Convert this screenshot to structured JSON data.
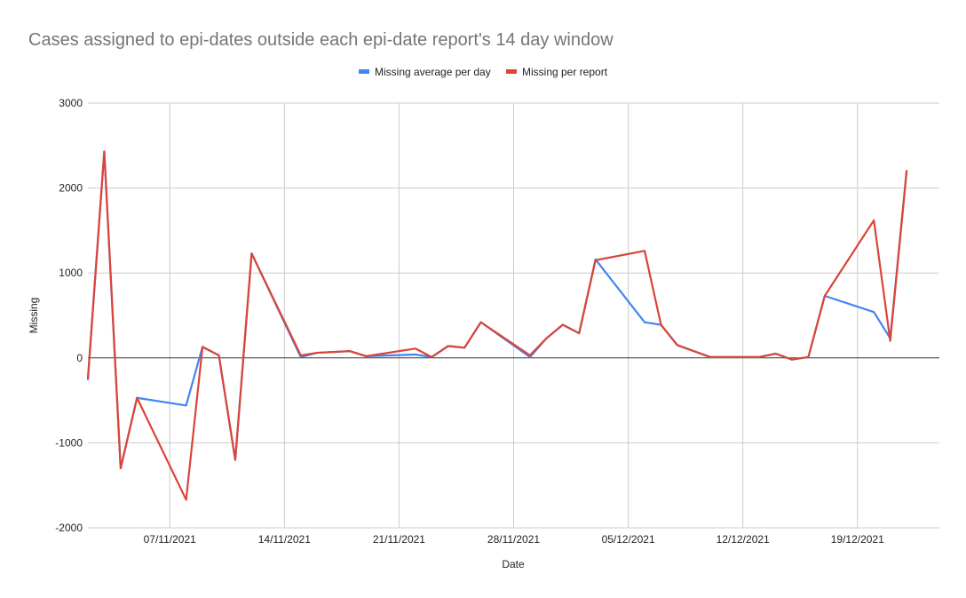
{
  "chart_data": {
    "type": "line",
    "title": "Cases assigned to epi-dates outside each epi-date report's 14 day window",
    "xlabel": "Date",
    "ylabel": "Missing",
    "ylim": [
      -2000,
      3000
    ],
    "yticks": [
      "3000",
      "2000",
      "1000",
      "0",
      "-1000",
      "-2000"
    ],
    "xlim": [
      "2021-11-02",
      "2021-12-24"
    ],
    "xticks": [
      {
        "date": "2021-11-07",
        "label": "07/11/2021"
      },
      {
        "date": "2021-11-14",
        "label": "14/11/2021"
      },
      {
        "date": "2021-11-21",
        "label": "21/11/2021"
      },
      {
        "date": "2021-11-28",
        "label": "28/11/2021"
      },
      {
        "date": "2021-12-05",
        "label": "05/12/2021"
      },
      {
        "date": "2021-12-12",
        "label": "12/12/2021"
      },
      {
        "date": "2021-12-19",
        "label": "19/12/2021"
      }
    ],
    "grid": true,
    "legend": "top",
    "series": [
      {
        "name": "Missing average per day",
        "color": "#4285f4",
        "points": [
          [
            "2021-11-02",
            -250
          ],
          [
            "2021-11-03",
            2430
          ],
          [
            "2021-11-04",
            -1300
          ],
          [
            "2021-11-05",
            -470
          ],
          [
            "2021-11-08",
            -560
          ],
          [
            "2021-11-09",
            130
          ],
          [
            "2021-11-10",
            30
          ],
          [
            "2021-11-11",
            -1200
          ],
          [
            "2021-11-12",
            1230
          ],
          [
            "2021-11-15",
            10
          ],
          [
            "2021-11-16",
            60
          ],
          [
            "2021-11-17",
            70
          ],
          [
            "2021-11-18",
            80
          ],
          [
            "2021-11-19",
            20
          ],
          [
            "2021-11-22",
            40
          ],
          [
            "2021-11-23",
            10
          ],
          [
            "2021-11-24",
            140
          ],
          [
            "2021-11-25",
            120
          ],
          [
            "2021-11-26",
            420
          ],
          [
            "2021-11-29",
            10
          ],
          [
            "2021-11-30",
            230
          ],
          [
            "2021-12-01",
            390
          ],
          [
            "2021-12-02",
            290
          ],
          [
            "2021-12-03",
            1160
          ],
          [
            "2021-12-06",
            420
          ],
          [
            "2021-12-07",
            390
          ],
          [
            "2021-12-08",
            150
          ],
          [
            "2021-12-09",
            80
          ],
          [
            "2021-12-10",
            10
          ],
          [
            "2021-12-13",
            10
          ],
          [
            "2021-12-14",
            50
          ],
          [
            "2021-12-15",
            -20
          ],
          [
            "2021-12-16",
            10
          ],
          [
            "2021-12-17",
            730
          ],
          [
            "2021-12-20",
            540
          ],
          [
            "2021-12-21",
            230
          ],
          [
            "2021-12-22",
            2200
          ]
        ]
      },
      {
        "name": "Missing per report",
        "color": "#db4437",
        "points": [
          [
            "2021-11-02",
            -250
          ],
          [
            "2021-11-03",
            2430
          ],
          [
            "2021-11-04",
            -1300
          ],
          [
            "2021-11-05",
            -470
          ],
          [
            "2021-11-08",
            -1670
          ],
          [
            "2021-11-09",
            130
          ],
          [
            "2021-11-10",
            30
          ],
          [
            "2021-11-11",
            -1200
          ],
          [
            "2021-11-12",
            1230
          ],
          [
            "2021-11-15",
            30
          ],
          [
            "2021-11-16",
            60
          ],
          [
            "2021-11-17",
            70
          ],
          [
            "2021-11-18",
            80
          ],
          [
            "2021-11-19",
            20
          ],
          [
            "2021-11-22",
            110
          ],
          [
            "2021-11-23",
            10
          ],
          [
            "2021-11-24",
            140
          ],
          [
            "2021-11-25",
            120
          ],
          [
            "2021-11-26",
            420
          ],
          [
            "2021-11-29",
            30
          ],
          [
            "2021-11-30",
            230
          ],
          [
            "2021-12-01",
            390
          ],
          [
            "2021-12-02",
            290
          ],
          [
            "2021-12-03",
            1150
          ],
          [
            "2021-12-06",
            1260
          ],
          [
            "2021-12-07",
            390
          ],
          [
            "2021-12-08",
            150
          ],
          [
            "2021-12-09",
            80
          ],
          [
            "2021-12-10",
            10
          ],
          [
            "2021-12-13",
            10
          ],
          [
            "2021-12-14",
            50
          ],
          [
            "2021-12-15",
            -20
          ],
          [
            "2021-12-16",
            10
          ],
          [
            "2021-12-17",
            730
          ],
          [
            "2021-12-20",
            1620
          ],
          [
            "2021-12-21",
            200
          ],
          [
            "2021-12-22",
            2200
          ]
        ]
      }
    ]
  }
}
